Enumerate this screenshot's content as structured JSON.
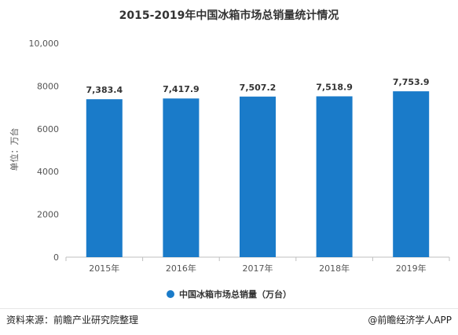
{
  "chart_data": {
    "type": "bar",
    "title": "2015-2019年中国冰箱市场总销量统计情况",
    "ylabel": "单位：万台",
    "xlabel": "",
    "categories": [
      "2015年",
      "2016年",
      "2017年",
      "2018年",
      "2019年"
    ],
    "series": [
      {
        "name": "中国冰箱市场总销量（万台）",
        "values": [
          7383.4,
          7417.9,
          7507.2,
          7518.9,
          7753.9
        ],
        "value_labels": [
          "7,383.4",
          "7,417.9",
          "7,507.2",
          "7,518.9",
          "7,753.9"
        ],
        "color": "#1a7bc9"
      }
    ],
    "ylim": [
      0,
      10000
    ],
    "yticks": [
      0,
      2000,
      4000,
      6000,
      8000,
      10000
    ],
    "ytick_labels": [
      "0",
      "2000",
      "4000",
      "6000",
      "8000",
      "10,000"
    ],
    "grid": false,
    "legend_position": "bottom"
  },
  "footer": {
    "source": "资料来源：前瞻产业研究院整理",
    "credit": "@前瞻经济学人APP"
  },
  "colors": {
    "bar": "#1a7bc9",
    "axis": "#bfbfbf",
    "tick_text": "#555555"
  }
}
